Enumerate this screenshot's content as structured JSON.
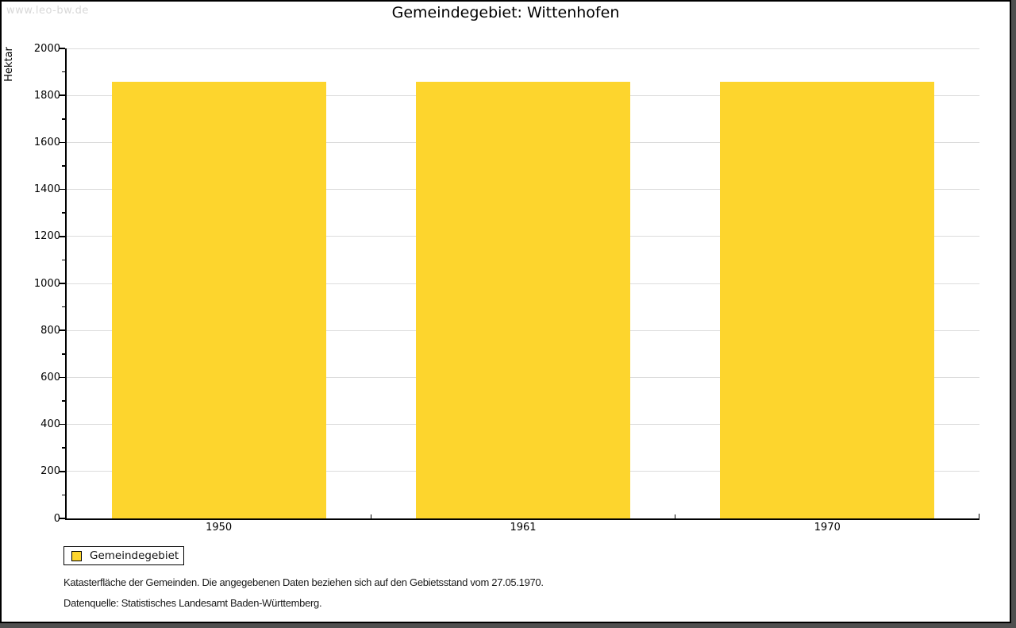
{
  "site": {
    "watermark": "www.leo-bw.de"
  },
  "chart_data": {
    "type": "bar",
    "title": "Gemeindegebiet: Wittenhofen",
    "xlabel": "",
    "ylabel": "Hektar",
    "categories": [
      "1950",
      "1961",
      "1970"
    ],
    "series": [
      {
        "name": "Gemeindegebiet",
        "values": [
          1858,
          1858,
          1858
        ]
      }
    ],
    "ylim": [
      0,
      2000
    ],
    "ytick_step": 200,
    "yminor_step": 100,
    "grid": true,
    "legend_position": "bottom-left"
  },
  "legend": {
    "items": [
      {
        "label": "Gemeindegebiet",
        "color": "#fdd52d"
      }
    ]
  },
  "notes": {
    "line1": "Katasterfläche der Gemeinden. Die angegebenen Daten beziehen sich auf den Gebietsstand vom 27.05.1970.",
    "line2": "Datenquelle: Statistisches Landesamt Baden-Württemberg."
  },
  "colors": {
    "bar": "#fdd52d",
    "grid": "#dcdcdc",
    "axis": "#000000",
    "watermark": "#d8d8d8",
    "frame_shadow": "#4f4f4f",
    "background": "#ffffff"
  }
}
